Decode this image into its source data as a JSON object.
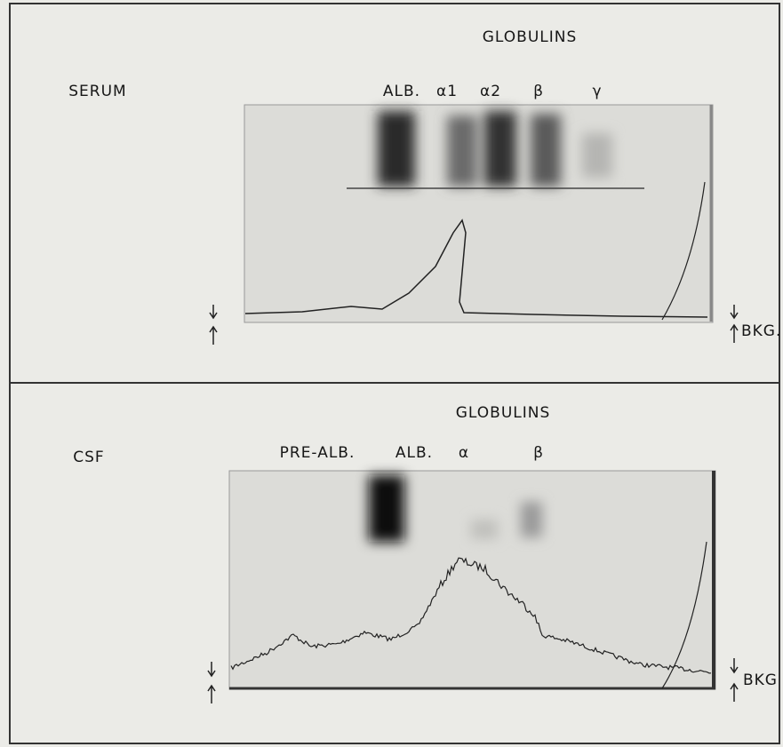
{
  "panels": [
    {
      "title": "GLOBULINS",
      "sample": "SERUM",
      "bands": [
        "ALB.",
        "α1",
        "α2",
        "β",
        "γ"
      ],
      "background": "BKG."
    },
    {
      "title": "GLOBULINS",
      "sample": "CSF",
      "bands": [
        "PRE-ALB.",
        "ALB.",
        "α",
        "β"
      ],
      "background": "BKG"
    }
  ]
}
